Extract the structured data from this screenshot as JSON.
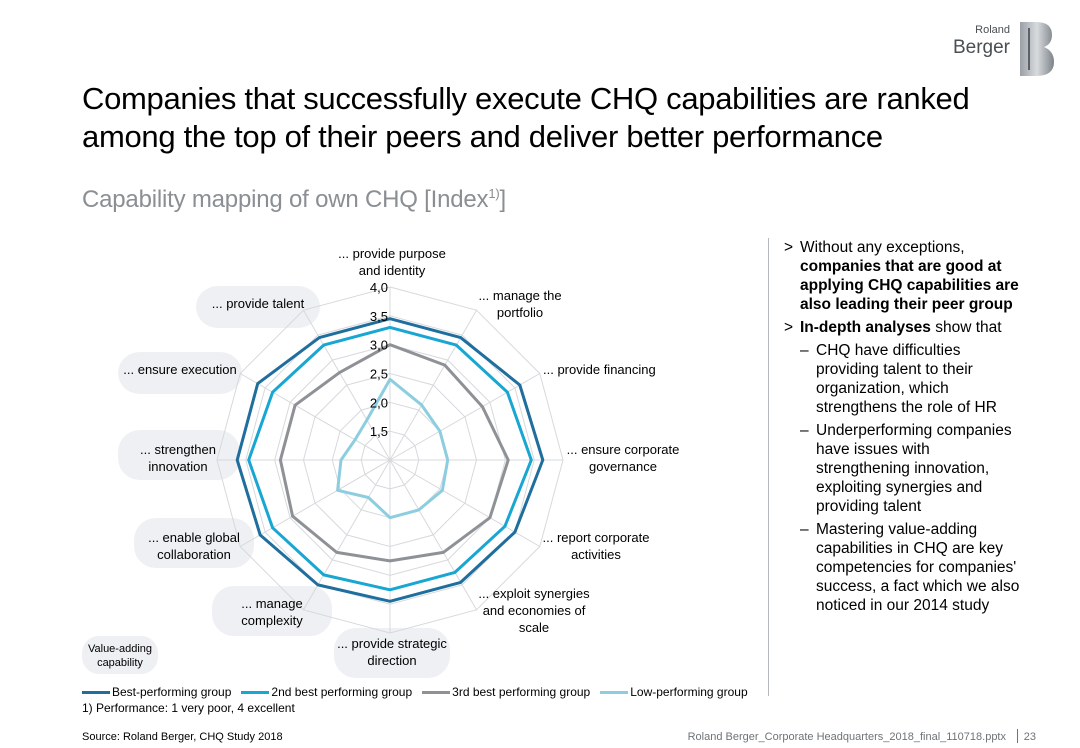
{
  "brand": {
    "line1": "Roland",
    "line2": "Berger",
    "logo_color": "#4a4f54"
  },
  "header": {
    "title": "Companies that successfully execute CHQ capabilities are ranked among the top of their peers and deliver better performance",
    "subtitle_main": "Capability mapping of own CHQ  [Index",
    "subtitle_sup": "1)",
    "subtitle_end": "]"
  },
  "chart_data": {
    "type": "radar",
    "categories": [
      "... provide purpose and identity",
      "... manage the portfolio",
      "... provide financing",
      "... ensure corporate governance",
      "... report corporate activities",
      "... exploit synergies and economies of scale",
      "... provide strategic direction",
      "... manage complexity",
      "... enable global collaboration",
      "... strengthen innovation",
      "... ensure execution",
      "... provide talent"
    ],
    "category_lines": [
      [
        "... provide purpose",
        "and identity"
      ],
      [
        "... manage the",
        "portfolio"
      ],
      [
        "... provide financing"
      ],
      [
        "... ensure corporate",
        "governance"
      ],
      [
        "... report corporate",
        "activities"
      ],
      [
        "... exploit synergies",
        "and economies of",
        "scale"
      ],
      [
        "... provide strategic",
        "direction"
      ],
      [
        "... manage",
        "complexity"
      ],
      [
        "... enable global",
        "collaboration"
      ],
      [
        "... strengthen",
        "innovation"
      ],
      [
        "... ensure execution"
      ],
      [
        "... provide talent"
      ]
    ],
    "tick_labels": [
      "1,5",
      "2,0",
      "2,5",
      "3,0",
      "3,5",
      "4,0"
    ],
    "range": [
      1.0,
      4.0
    ],
    "series": [
      {
        "name": "Best-performing group",
        "color": "#1f6e9e",
        "values": [
          3.45,
          3.45,
          3.6,
          3.65,
          3.5,
          3.45,
          3.45,
          3.5,
          3.6,
          3.65,
          3.65,
          3.45
        ]
      },
      {
        "name": "2nd best performing group",
        "color": "#18a6d3",
        "values": [
          3.3,
          3.3,
          3.35,
          3.45,
          3.3,
          3.25,
          3.25,
          3.3,
          3.35,
          3.45,
          3.35,
          3.3
        ]
      },
      {
        "name": "3rd best performing group",
        "color": "#8e9296",
        "values": [
          3.0,
          2.9,
          2.85,
          3.05,
          3.0,
          2.85,
          2.75,
          2.85,
          2.95,
          2.9,
          2.9,
          2.75
        ]
      },
      {
        "name": "Low-performing group",
        "color": "#8dcde0",
        "values": [
          2.4,
          2.1,
          2.0,
          2.0,
          2.05,
          2.0,
          2.0,
          1.75,
          2.05,
          1.85,
          1.7,
          1.8
        ]
      }
    ],
    "value_adding_note": [
      "Value-adding",
      "capability"
    ],
    "value_adding_indices": [
      9,
      10,
      11,
      8,
      7,
      6
    ]
  },
  "bullets": {
    "b1_pre": "Without any exceptions, ",
    "b1_bold": "companies that are good at applying CHQ capabilities are also leading their peer group",
    "b2_bold": "In-depth analyses",
    "b2_post": " show that",
    "subs": [
      "CHQ have difficulties providing talent to their organization, which strengthens the role of HR",
      "Underperforming companies have issues with strengthening innovation, exploiting synergies and providing talent",
      "Mastering value-adding capabilities in CHQ are key competencies for companies' success, a fact which we also noticed in our 2014 study"
    ],
    "marker": ">",
    "dash": "–"
  },
  "footnote": "1) Performance: 1 very poor, 4 excellent",
  "source": "Source: Roland Berger, CHQ Study 2018",
  "file_name": "Roland Berger_Corporate Headquarters_2018_final_110718.pptx",
  "page_number": "23"
}
